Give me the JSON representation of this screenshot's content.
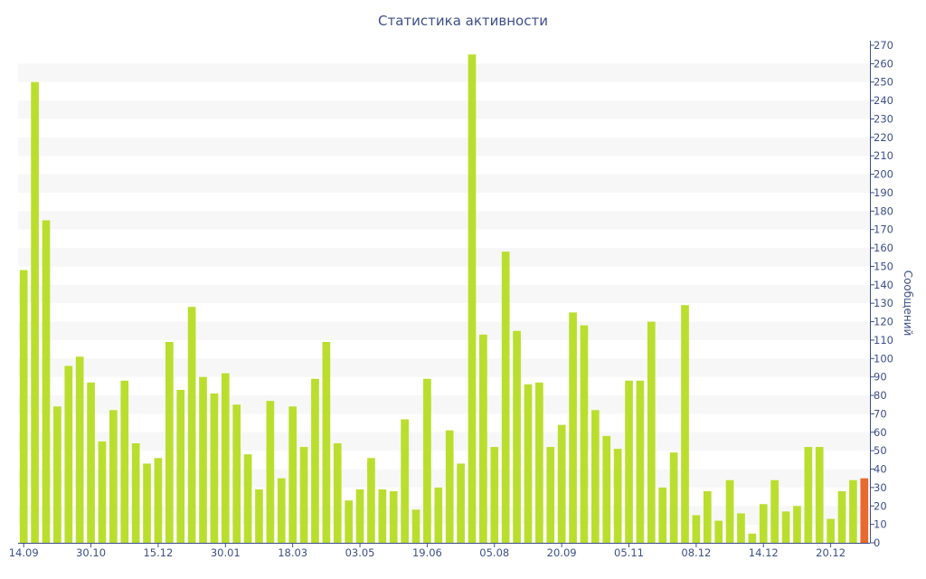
{
  "chart_data": {
    "type": "bar",
    "title": "Статистика активности",
    "ylabel": "Сообщений",
    "xlabel": "",
    "ylim": [
      0,
      270
    ],
    "y_ticks": [
      0,
      10,
      20,
      30,
      40,
      50,
      60,
      70,
      80,
      90,
      100,
      110,
      120,
      130,
      140,
      150,
      160,
      170,
      180,
      190,
      200,
      210,
      220,
      230,
      240,
      250,
      260,
      270
    ],
    "y_axis_side": "right",
    "grid": "alternating horizontal bands",
    "x_tick_labels": [
      {
        "label": "14.09",
        "index": 0
      },
      {
        "label": "30.10",
        "index": 6
      },
      {
        "label": "15.12",
        "index": 12
      },
      {
        "label": "30.01",
        "index": 18
      },
      {
        "label": "18.03",
        "index": 24
      },
      {
        "label": "03.05",
        "index": 30
      },
      {
        "label": "19.06",
        "index": 36
      },
      {
        "label": "05.08",
        "index": 42
      },
      {
        "label": "20.09",
        "index": 48
      },
      {
        "label": "05.11",
        "index": 54
      },
      {
        "label": "08.12",
        "index": 60
      },
      {
        "label": "14.12",
        "index": 66
      },
      {
        "label": "20.12",
        "index": 72
      }
    ],
    "values": [
      148,
      250,
      175,
      74,
      96,
      101,
      87,
      55,
      72,
      88,
      54,
      43,
      46,
      109,
      83,
      128,
      90,
      81,
      92,
      75,
      48,
      29,
      77,
      35,
      74,
      52,
      89,
      109,
      54,
      23,
      29,
      46,
      29,
      28,
      67,
      18,
      89,
      30,
      61,
      43,
      265,
      113,
      52,
      158,
      115,
      86,
      87,
      52,
      64,
      125,
      118,
      72,
      58,
      51,
      88,
      88,
      120,
      30,
      49,
      129,
      15,
      28,
      12,
      34,
      16,
      5,
      21,
      34,
      17,
      20,
      52,
      52,
      13,
      28,
      34,
      35
    ],
    "highlight_index": 75,
    "bar_color": "#bade2e",
    "highlight_color": "#e86a2e",
    "band_color": "#f7f7f7",
    "text_color": "#3d4f8a"
  }
}
